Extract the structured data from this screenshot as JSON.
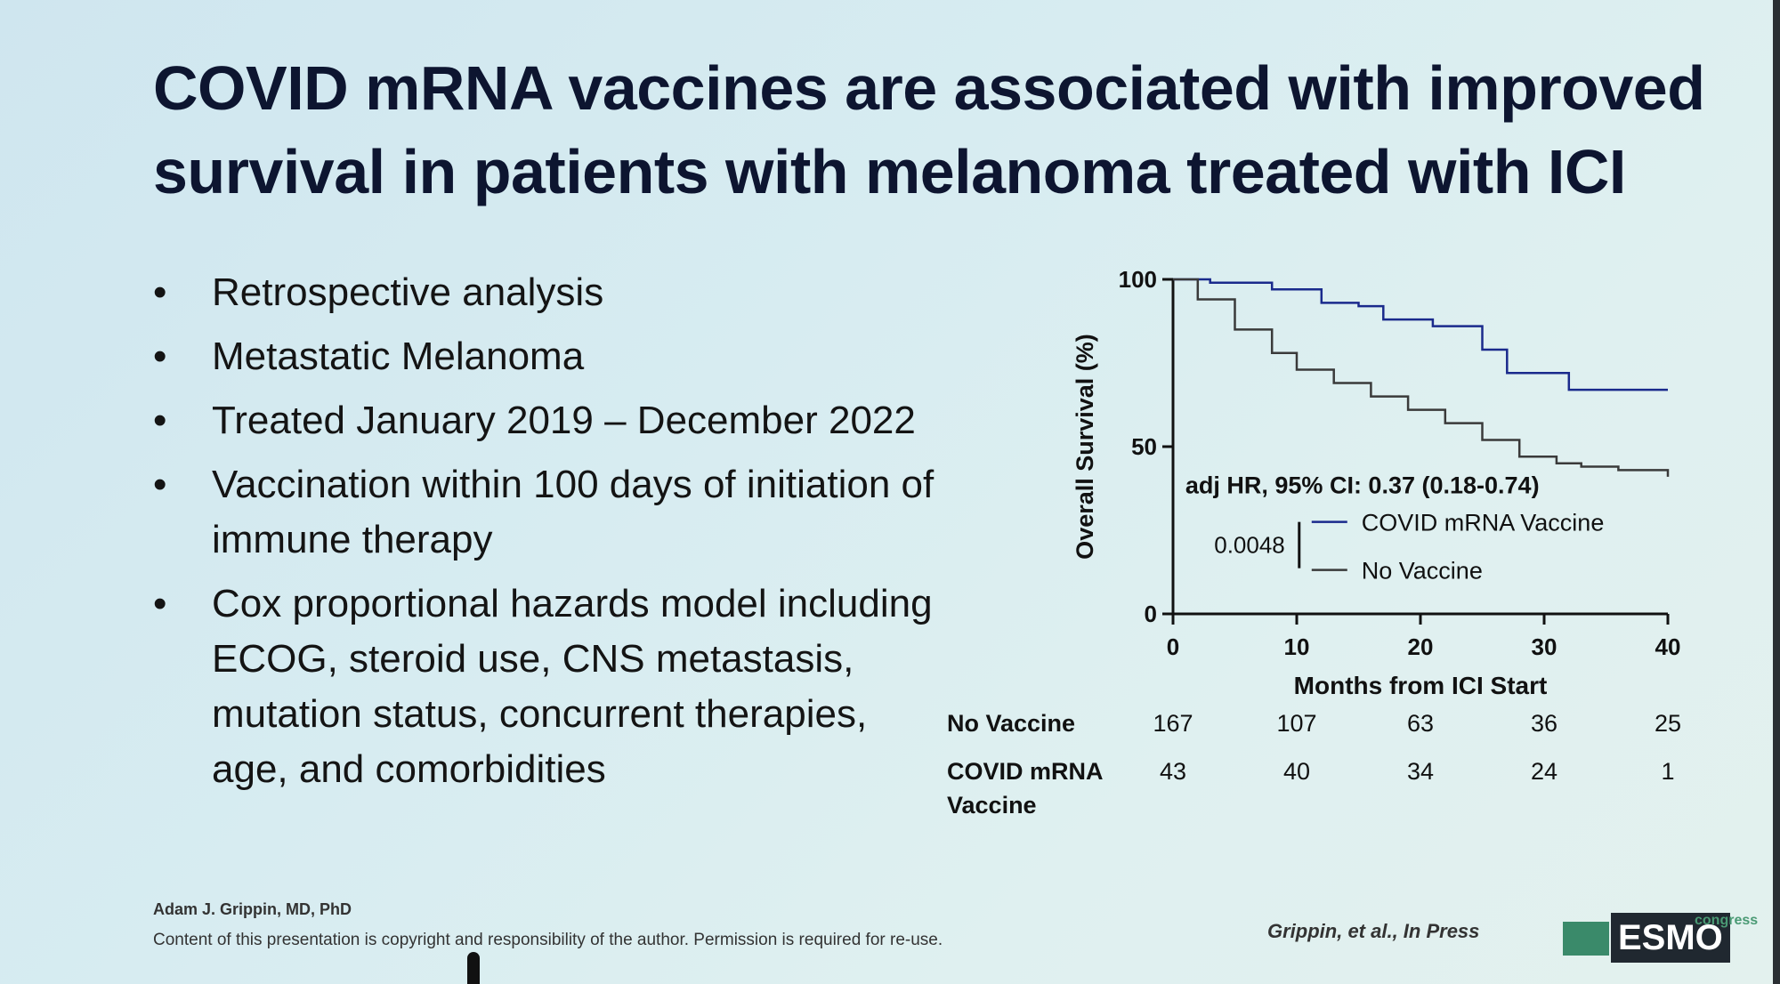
{
  "slide": {
    "title_lines": [
      "COVID mRNA vaccines are associated with improved",
      "survival in patients with melanoma treated with ICI"
    ],
    "bullets": [
      "Retrospective analysis",
      "Metastatic Melanoma",
      "Treated January 2019 – December 2022",
      "Vaccination within 100 days of initiation of immune therapy",
      "Cox proportional hazards model including ECOG, steroid use, CNS metastasis, mutation status, concurrent therapies, age, and comorbidities"
    ],
    "bullet_symbol": "•",
    "footer": {
      "author": "Adam J. Grippin, MD, PhD",
      "copyright": "Content of this presentation is copyright and responsibility of the author. Permission is required for re-use.",
      "citation": "Grippin, et al., In Press",
      "logo_text": "ESMO",
      "logo_sup": "congress"
    }
  },
  "chart_data": {
    "type": "line",
    "subtype": "kaplan-meier",
    "xlabel": "Months from ICI Start",
    "ylabel": "Overall Survival (%)",
    "xlim": [
      0,
      40
    ],
    "ylim": [
      0,
      100
    ],
    "xticks": [
      0,
      10,
      20,
      30,
      40
    ],
    "yticks": [
      0,
      50,
      100
    ],
    "annotation": "adj HR, 95% CI: 0.37 (0.18-0.74)",
    "p_value": "0.0048",
    "series": [
      {
        "name": "COVID mRNA Vaccine",
        "color": "#1a2a8c",
        "points": [
          [
            0,
            100
          ],
          [
            3,
            99
          ],
          [
            8,
            97
          ],
          [
            12,
            93
          ],
          [
            15,
            92
          ],
          [
            17,
            88
          ],
          [
            21,
            86
          ],
          [
            25,
            79
          ],
          [
            27,
            72
          ],
          [
            30,
            72
          ],
          [
            32,
            67
          ],
          [
            40,
            67
          ]
        ]
      },
      {
        "name": "No Vaccine",
        "color": "#3a3a3a",
        "points": [
          [
            0,
            100
          ],
          [
            2,
            94
          ],
          [
            5,
            85
          ],
          [
            8,
            78
          ],
          [
            10,
            73
          ],
          [
            13,
            69
          ],
          [
            16,
            65
          ],
          [
            19,
            61
          ],
          [
            22,
            57
          ],
          [
            25,
            52
          ],
          [
            28,
            47
          ],
          [
            31,
            45
          ],
          [
            33,
            44
          ],
          [
            36,
            43
          ],
          [
            40,
            41
          ]
        ]
      }
    ],
    "risk_table": {
      "timepoints": [
        0,
        10,
        20,
        30,
        40
      ],
      "rows": [
        {
          "label": "No Vaccine",
          "values": [
            167,
            107,
            63,
            36,
            25
          ]
        },
        {
          "label": "COVID mRNA Vaccine",
          "values": [
            43,
            40,
            34,
            24,
            1
          ]
        }
      ]
    }
  }
}
